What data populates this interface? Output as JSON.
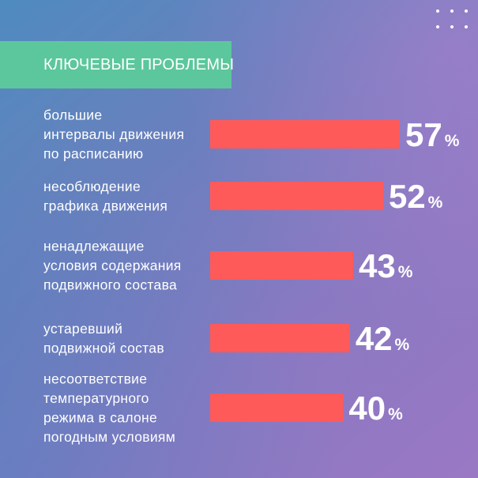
{
  "header": {
    "title": "КЛЮЧЕВЫЕ ПРОБЛЕМЫ"
  },
  "colors": {
    "bar": "#ff5a5a",
    "banner": "#5cc79c",
    "text": "#ffffff"
  },
  "chart_data": {
    "type": "bar",
    "orientation": "horizontal",
    "title": "КЛЮЧЕВЫЕ ПРОБЛЕМЫ",
    "value_suffix": "%",
    "categories": [
      [
        "большие",
        "интервалы движения",
        "по расписанию"
      ],
      [
        "несоблюдение",
        "графика движения"
      ],
      [
        "ненадлежащие",
        "условия содержания",
        "подвижного состава"
      ],
      [
        "устаревший",
        "подвижной состав"
      ],
      [
        "несоответствие",
        "температурного",
        "режима в салоне",
        "погодным условиям"
      ]
    ],
    "values": [
      57,
      52,
      43,
      42,
      40
    ]
  }
}
